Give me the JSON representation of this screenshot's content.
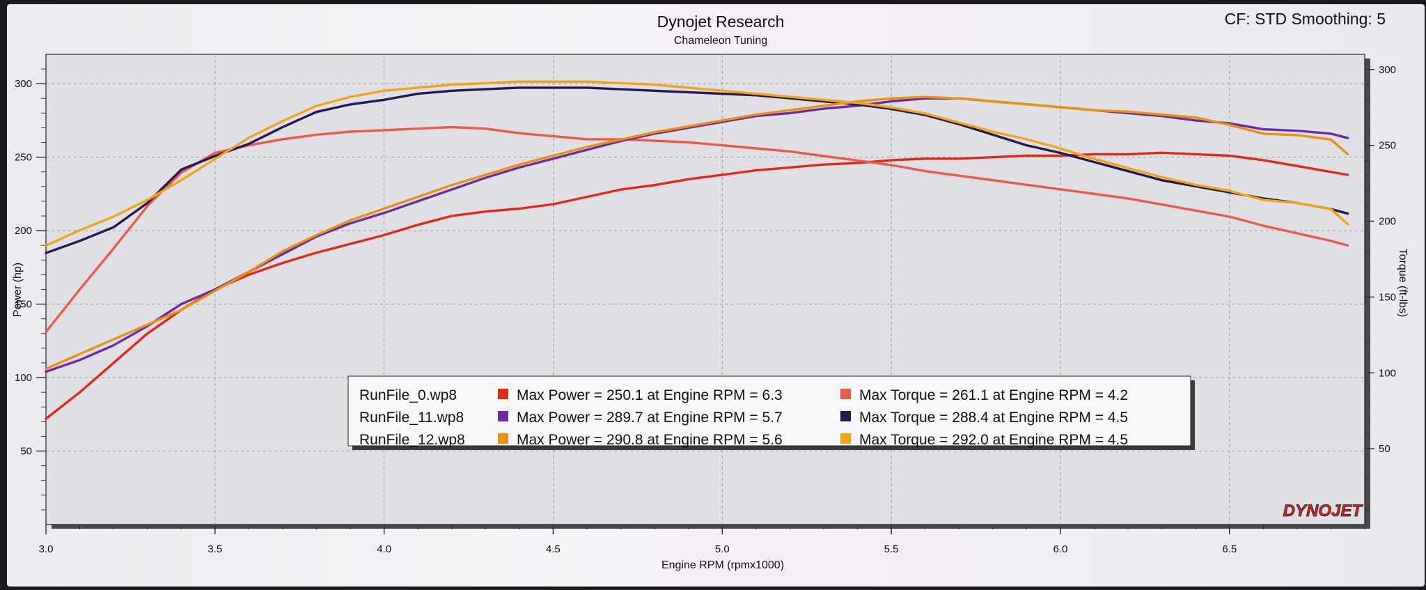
{
  "header": {
    "title": "Dynojet Research",
    "subtitle": "Chameleon Tuning",
    "settings": "CF: STD Smoothing: 5"
  },
  "brand": {
    "logo_text": "DYNOJET"
  },
  "chart_data": {
    "type": "line",
    "xlabel": "Engine RPM (rpmx1000)",
    "ylabel": "Power (hp)",
    "y2label": "Torque (ft-lbs)",
    "xlim": [
      3.0,
      6.9
    ],
    "ylim": [
      0,
      320
    ],
    "y2lim": [
      0,
      310
    ],
    "x_ticks": [
      "3.0",
      "3.5",
      "4.0",
      "4.5",
      "5.0",
      "5.5",
      "6.0",
      "6.5"
    ],
    "y_ticks": [
      "50",
      "100",
      "150",
      "200",
      "250",
      "300"
    ],
    "y2_ticks": [
      "50",
      "100",
      "150",
      "200",
      "250",
      "300"
    ],
    "grid": true,
    "legend_position": "center-bottom",
    "series": [
      {
        "name": "RunFile_0.wp8",
        "kind": "power",
        "color": "#e02a18",
        "points": [
          [
            3.0,
            72
          ],
          [
            3.1,
            90
          ],
          [
            3.2,
            110
          ],
          [
            3.3,
            130
          ],
          [
            3.4,
            146
          ],
          [
            3.5,
            160
          ],
          [
            3.6,
            170
          ],
          [
            3.7,
            178
          ],
          [
            3.8,
            185
          ],
          [
            3.9,
            191
          ],
          [
            4.0,
            197
          ],
          [
            4.1,
            204
          ],
          [
            4.2,
            210
          ],
          [
            4.3,
            213
          ],
          [
            4.4,
            215
          ],
          [
            4.5,
            218
          ],
          [
            4.6,
            223
          ],
          [
            4.7,
            228
          ],
          [
            4.8,
            231
          ],
          [
            4.9,
            235
          ],
          [
            5.0,
            238
          ],
          [
            5.1,
            241
          ],
          [
            5.2,
            243
          ],
          [
            5.3,
            245
          ],
          [
            5.4,
            246
          ],
          [
            5.5,
            248
          ],
          [
            5.6,
            249
          ],
          [
            5.7,
            249
          ],
          [
            5.8,
            250
          ],
          [
            5.9,
            251
          ],
          [
            6.0,
            251
          ],
          [
            6.1,
            252
          ],
          [
            6.2,
            252
          ],
          [
            6.3,
            253
          ],
          [
            6.4,
            252
          ],
          [
            6.5,
            251
          ],
          [
            6.6,
            248
          ],
          [
            6.7,
            244
          ],
          [
            6.8,
            240
          ],
          [
            6.85,
            238
          ]
        ]
      },
      {
        "name": "RunFile_0.wp8",
        "kind": "torque",
        "color": "#ea5a4c",
        "points": [
          [
            3.0,
            127
          ],
          [
            3.1,
            155
          ],
          [
            3.2,
            182
          ],
          [
            3.3,
            210
          ],
          [
            3.4,
            232
          ],
          [
            3.5,
            245
          ],
          [
            3.6,
            250
          ],
          [
            3.7,
            254
          ],
          [
            3.8,
            257
          ],
          [
            3.9,
            259
          ],
          [
            4.0,
            260
          ],
          [
            4.1,
            261
          ],
          [
            4.2,
            262
          ],
          [
            4.3,
            261
          ],
          [
            4.4,
            258
          ],
          [
            4.5,
            256
          ],
          [
            4.6,
            254
          ],
          [
            4.7,
            254
          ],
          [
            4.8,
            253
          ],
          [
            4.9,
            252
          ],
          [
            5.0,
            250
          ],
          [
            5.1,
            248
          ],
          [
            5.2,
            246
          ],
          [
            5.3,
            243
          ],
          [
            5.4,
            240
          ],
          [
            5.5,
            237
          ],
          [
            5.6,
            233
          ],
          [
            5.7,
            230
          ],
          [
            5.8,
            227
          ],
          [
            5.9,
            224
          ],
          [
            6.0,
            221
          ],
          [
            6.1,
            218
          ],
          [
            6.2,
            215
          ],
          [
            6.3,
            211
          ],
          [
            6.4,
            207
          ],
          [
            6.5,
            203
          ],
          [
            6.6,
            197
          ],
          [
            6.7,
            192
          ],
          [
            6.8,
            187
          ],
          [
            6.85,
            184
          ]
        ]
      },
      {
        "name": "RunFile_11.wp8",
        "kind": "power",
        "color": "#6a2ca0",
        "points": [
          [
            3.0,
            104
          ],
          [
            3.1,
            112
          ],
          [
            3.2,
            122
          ],
          [
            3.3,
            135
          ],
          [
            3.4,
            150
          ],
          [
            3.5,
            160
          ],
          [
            3.6,
            172
          ],
          [
            3.7,
            184
          ],
          [
            3.8,
            196
          ],
          [
            3.9,
            205
          ],
          [
            4.0,
            212
          ],
          [
            4.1,
            220
          ],
          [
            4.2,
            228
          ],
          [
            4.3,
            236
          ],
          [
            4.4,
            243
          ],
          [
            4.5,
            249
          ],
          [
            4.6,
            255
          ],
          [
            4.7,
            261
          ],
          [
            4.8,
            266
          ],
          [
            4.9,
            270
          ],
          [
            5.0,
            274
          ],
          [
            5.1,
            278
          ],
          [
            5.2,
            280
          ],
          [
            5.3,
            283
          ],
          [
            5.4,
            285
          ],
          [
            5.5,
            288
          ],
          [
            5.6,
            290
          ],
          [
            5.7,
            290
          ],
          [
            5.8,
            288
          ],
          [
            5.9,
            286
          ],
          [
            6.0,
            284
          ],
          [
            6.1,
            282
          ],
          [
            6.2,
            280
          ],
          [
            6.3,
            278
          ],
          [
            6.4,
            275
          ],
          [
            6.5,
            273
          ],
          [
            6.6,
            269
          ],
          [
            6.7,
            268
          ],
          [
            6.8,
            266
          ],
          [
            6.85,
            263
          ]
        ]
      },
      {
        "name": "RunFile_11.wp8",
        "kind": "torque",
        "color": "#241a4c",
        "points": [
          [
            3.0,
            179
          ],
          [
            3.1,
            187
          ],
          [
            3.2,
            196
          ],
          [
            3.3,
            212
          ],
          [
            3.4,
            234
          ],
          [
            3.5,
            243
          ],
          [
            3.6,
            251
          ],
          [
            3.7,
            262
          ],
          [
            3.8,
            272
          ],
          [
            3.9,
            277
          ],
          [
            4.0,
            280
          ],
          [
            4.1,
            284
          ],
          [
            4.2,
            286
          ],
          [
            4.3,
            287
          ],
          [
            4.4,
            288
          ],
          [
            4.5,
            288
          ],
          [
            4.6,
            288
          ],
          [
            4.7,
            287
          ],
          [
            4.8,
            286
          ],
          [
            4.9,
            285
          ],
          [
            5.0,
            284
          ],
          [
            5.1,
            283
          ],
          [
            5.2,
            281
          ],
          [
            5.3,
            279
          ],
          [
            5.4,
            277
          ],
          [
            5.5,
            274
          ],
          [
            5.6,
            270
          ],
          [
            5.7,
            264
          ],
          [
            5.8,
            257
          ],
          [
            5.9,
            250
          ],
          [
            6.0,
            245
          ],
          [
            6.1,
            239
          ],
          [
            6.2,
            233
          ],
          [
            6.3,
            227
          ],
          [
            6.4,
            223
          ],
          [
            6.5,
            219
          ],
          [
            6.6,
            215
          ],
          [
            6.7,
            212
          ],
          [
            6.8,
            208
          ],
          [
            6.85,
            205
          ]
        ]
      },
      {
        "name": "RunFile_12.wp8",
        "kind": "power",
        "color": "#e89212",
        "points": [
          [
            3.0,
            106
          ],
          [
            3.1,
            116
          ],
          [
            3.2,
            126
          ],
          [
            3.3,
            136
          ],
          [
            3.4,
            146
          ],
          [
            3.5,
            159
          ],
          [
            3.6,
            172
          ],
          [
            3.7,
            186
          ],
          [
            3.8,
            197
          ],
          [
            3.9,
            207
          ],
          [
            4.0,
            215
          ],
          [
            4.1,
            223
          ],
          [
            4.2,
            231
          ],
          [
            4.3,
            238
          ],
          [
            4.4,
            245
          ],
          [
            4.5,
            251
          ],
          [
            4.6,
            257
          ],
          [
            4.7,
            262
          ],
          [
            4.8,
            267
          ],
          [
            4.9,
            271
          ],
          [
            5.0,
            275
          ],
          [
            5.1,
            279
          ],
          [
            5.2,
            282
          ],
          [
            5.3,
            285
          ],
          [
            5.4,
            288
          ],
          [
            5.5,
            290
          ],
          [
            5.6,
            291
          ],
          [
            5.7,
            290
          ],
          [
            5.8,
            288
          ],
          [
            5.9,
            286
          ],
          [
            6.0,
            284
          ],
          [
            6.1,
            282
          ],
          [
            6.2,
            281
          ],
          [
            6.3,
            279
          ],
          [
            6.4,
            277
          ],
          [
            6.5,
            272
          ],
          [
            6.6,
            266
          ],
          [
            6.7,
            265
          ],
          [
            6.8,
            262
          ],
          [
            6.85,
            252
          ]
        ]
      },
      {
        "name": "RunFile_12.wp8",
        "kind": "torque",
        "color": "#f0a418",
        "points": [
          [
            3.0,
            184
          ],
          [
            3.1,
            194
          ],
          [
            3.2,
            203
          ],
          [
            3.3,
            214
          ],
          [
            3.4,
            227
          ],
          [
            3.5,
            241
          ],
          [
            3.6,
            255
          ],
          [
            3.7,
            266
          ],
          [
            3.8,
            276
          ],
          [
            3.9,
            282
          ],
          [
            4.0,
            286
          ],
          [
            4.1,
            288
          ],
          [
            4.2,
            290
          ],
          [
            4.3,
            291
          ],
          [
            4.4,
            292
          ],
          [
            4.5,
            292
          ],
          [
            4.6,
            292
          ],
          [
            4.7,
            291
          ],
          [
            4.8,
            290
          ],
          [
            4.9,
            288
          ],
          [
            5.0,
            286
          ],
          [
            5.1,
            284
          ],
          [
            5.2,
            282
          ],
          [
            5.3,
            280
          ],
          [
            5.4,
            278
          ],
          [
            5.5,
            275
          ],
          [
            5.6,
            271
          ],
          [
            5.7,
            265
          ],
          [
            5.8,
            259
          ],
          [
            5.9,
            254
          ],
          [
            6.0,
            248
          ],
          [
            6.1,
            241
          ],
          [
            6.2,
            235
          ],
          [
            6.3,
            229
          ],
          [
            6.4,
            224
          ],
          [
            6.5,
            220
          ],
          [
            6.6,
            214
          ],
          [
            6.7,
            212
          ],
          [
            6.8,
            208
          ],
          [
            6.85,
            198
          ]
        ]
      }
    ],
    "legend": [
      {
        "file": "RunFile_0.wp8",
        "power_color": "#e02a18",
        "power_text": "Max Power = 250.1 at Engine RPM = 6.3",
        "torque_color": "#ea5a4c",
        "torque_text": "Max Torque = 261.1 at Engine RPM = 4.2"
      },
      {
        "file": "RunFile_11.wp8",
        "power_color": "#6a2ca0",
        "power_text": "Max Power = 289.7 at Engine RPM = 5.7",
        "torque_color": "#241a4c",
        "torque_text": "Max Torque = 288.4 at Engine RPM = 4.5"
      },
      {
        "file": "RunFile_12.wp8",
        "power_color": "#e89212",
        "power_text": "Max Power = 290.8 at Engine RPM = 5.6",
        "torque_color": "#f0a418",
        "torque_text": "Max Torque = 292.0 at Engine RPM = 4.5"
      }
    ]
  }
}
